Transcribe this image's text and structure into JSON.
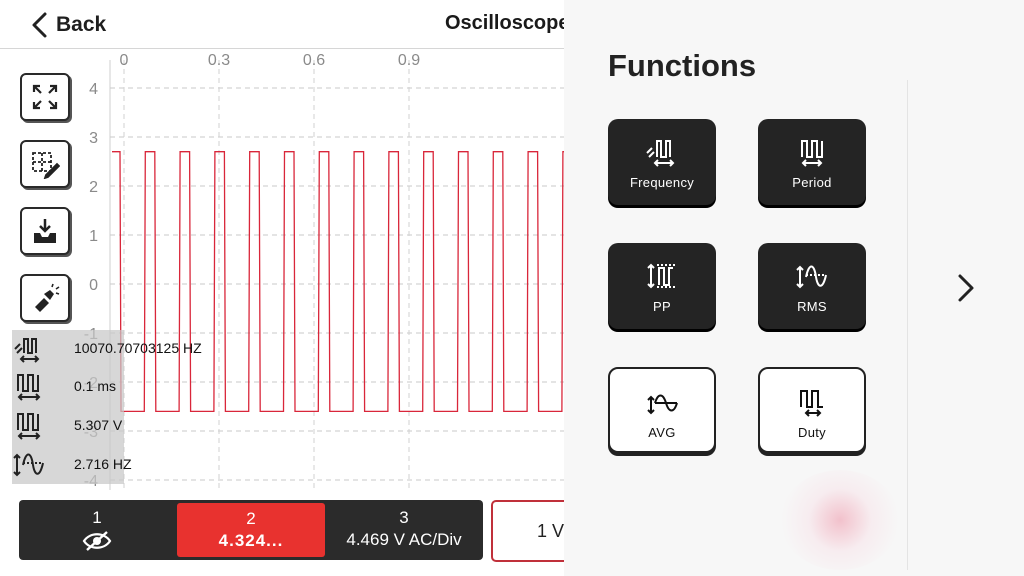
{
  "header": {
    "back_label": "Back",
    "title": "Oscilloscope"
  },
  "plot": {
    "x_ticks": [
      "0",
      "0.3",
      "0.6",
      "0.9"
    ],
    "y_ticks": [
      "4",
      "3",
      "2",
      "1",
      "0",
      "-1",
      "-2",
      "-3",
      "-4"
    ],
    "trace_color": "#d9263a",
    "trace_high": 2.7,
    "trace_low": -2.6
  },
  "toolbar": {
    "items": [
      "fullscreen-icon",
      "select-edit-icon",
      "download-icon",
      "flashlight-icon"
    ]
  },
  "readouts": [
    {
      "icon": "frequency-icon",
      "value": "10070.70703125 HZ"
    },
    {
      "icon": "period-icon",
      "value": "0.1 ms"
    },
    {
      "icon": "period-icon",
      "value": "5.307 V"
    },
    {
      "icon": "rms-icon",
      "value": "2.716 HZ"
    }
  ],
  "channels": [
    {
      "number": "1",
      "icon": "eye-off-icon"
    },
    {
      "number": "2",
      "value": "4.324..."
    },
    {
      "number": "3",
      "value": "4.469 V AC/Div"
    }
  ],
  "volt_button": {
    "label": "1 V"
  },
  "functions": {
    "title": "Functions",
    "items": [
      {
        "label": "Frequency",
        "style": "dark",
        "icon": "frequency-icon"
      },
      {
        "label": "Period",
        "style": "dark",
        "icon": "period-icon"
      },
      {
        "label": "PP",
        "style": "dark",
        "icon": "peak-peak-icon"
      },
      {
        "label": "RMS",
        "style": "dark",
        "icon": "rms-icon"
      },
      {
        "label": "AVG",
        "style": "light",
        "icon": "avg-icon"
      },
      {
        "label": "Duty",
        "style": "light",
        "icon": "duty-icon"
      }
    ]
  },
  "colors": {
    "accent": "#e8322f",
    "channel_bar": "#2b2b2b",
    "trace": "#d9263a"
  }
}
